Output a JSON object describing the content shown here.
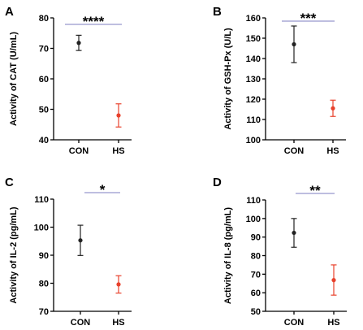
{
  "chart_data": [
    {
      "type": "scatter",
      "panel": "A",
      "ylabel": "Activity of CAT  (U/mL)",
      "categories": [
        "CON",
        "HS"
      ],
      "ylim": [
        40,
        80
      ],
      "yticks": [
        40,
        50,
        60,
        70,
        80
      ],
      "points": [
        {
          "category": "CON",
          "mean": 71.8,
          "low": 69.3,
          "high": 74.3,
          "color": "#222222"
        },
        {
          "category": "HS",
          "mean": 48.0,
          "low": 44.2,
          "high": 51.8,
          "color": "#e8412c"
        }
      ],
      "significance": "****"
    },
    {
      "type": "scatter",
      "panel": "B",
      "ylabel": "Activity of GSH-Px  (U/L)",
      "categories": [
        "CON",
        "HS"
      ],
      "ylim": [
        100,
        160
      ],
      "yticks": [
        100,
        110,
        120,
        130,
        140,
        150,
        160
      ],
      "points": [
        {
          "category": "CON",
          "mean": 147,
          "low": 138,
          "high": 156,
          "color": "#222222"
        },
        {
          "category": "HS",
          "mean": 115.5,
          "low": 111.5,
          "high": 119.5,
          "color": "#e8412c"
        }
      ],
      "significance": "***"
    },
    {
      "type": "scatter",
      "panel": "C",
      "ylabel": "Activity of IL-2  (pg/mL)",
      "categories": [
        "CON",
        "HS"
      ],
      "ylim": [
        70,
        110
      ],
      "yticks": [
        70,
        80,
        90,
        100,
        110
      ],
      "points": [
        {
          "category": "CON",
          "mean": 95.3,
          "low": 89.9,
          "high": 100.7,
          "color": "#222222"
        },
        {
          "category": "HS",
          "mean": 79.6,
          "low": 76.5,
          "high": 82.7,
          "color": "#e8412c"
        }
      ],
      "significance": "*"
    },
    {
      "type": "scatter",
      "panel": "D",
      "ylabel": "Activity of IL-8  (pg/mL)",
      "categories": [
        "CON",
        "HS"
      ],
      "ylim": [
        50,
        110
      ],
      "yticks": [
        50,
        60,
        70,
        80,
        90,
        100,
        110
      ],
      "points": [
        {
          "category": "CON",
          "mean": 92.3,
          "low": 84.5,
          "high": 100,
          "color": "#222222"
        },
        {
          "category": "HS",
          "mean": 66.8,
          "low": 58.7,
          "high": 75,
          "color": "#e8412c"
        }
      ],
      "significance": "**"
    }
  ],
  "colors": {
    "axis": "#000000",
    "significance_bar": "#a9a9d6"
  }
}
